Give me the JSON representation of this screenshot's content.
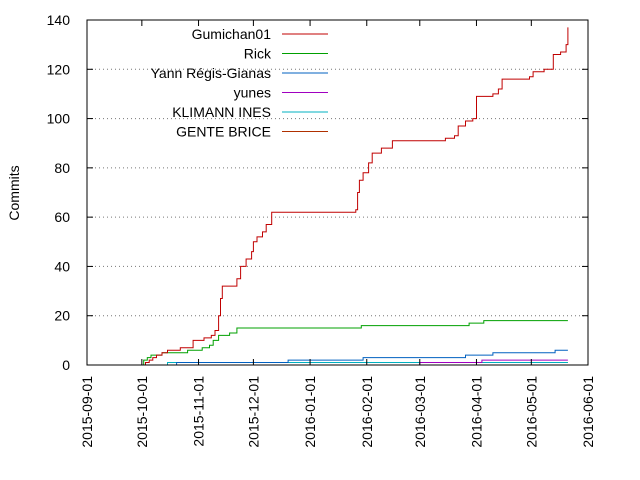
{
  "chart_data": {
    "type": "line",
    "title": "",
    "xlabel": "",
    "ylabel": "Commits",
    "ylim": [
      0,
      140
    ],
    "yticks": [
      0,
      20,
      40,
      60,
      80,
      100,
      120,
      140
    ],
    "xlim": [
      "2015-09-01",
      "2016-06-01"
    ],
    "xticks": [
      "2015-09-01",
      "2015-10-01",
      "2015-11-01",
      "2015-12-01",
      "2016-01-01",
      "2016-02-01",
      "2016-03-01",
      "2016-04-01",
      "2016-05-01",
      "2016-06-01"
    ],
    "grid": "horizontal dotted",
    "legend_position": "top-left",
    "series": [
      {
        "name": "Gumichan01",
        "color": "#c00000",
        "points": [
          [
            "2015-10-01",
            0
          ],
          [
            "2015-10-03",
            1
          ],
          [
            "2015-10-05",
            2
          ],
          [
            "2015-10-07",
            3
          ],
          [
            "2015-10-09",
            4
          ],
          [
            "2015-10-12",
            5
          ],
          [
            "2015-10-15",
            6
          ],
          [
            "2015-10-22",
            7
          ],
          [
            "2015-10-29",
            10
          ],
          [
            "2015-11-04",
            11
          ],
          [
            "2015-11-08",
            12
          ],
          [
            "2015-11-10",
            14
          ],
          [
            "2015-11-12",
            20
          ],
          [
            "2015-11-13",
            27
          ],
          [
            "2015-11-14",
            32
          ],
          [
            "2015-11-18",
            32
          ],
          [
            "2015-11-22",
            35
          ],
          [
            "2015-11-24",
            40
          ],
          [
            "2015-11-27",
            43
          ],
          [
            "2015-11-30",
            46
          ],
          [
            "2015-12-01",
            50
          ],
          [
            "2015-12-03",
            52
          ],
          [
            "2015-12-06",
            54
          ],
          [
            "2015-12-08",
            57
          ],
          [
            "2015-12-11",
            62
          ],
          [
            "2015-12-24",
            62
          ],
          [
            "2016-01-01",
            62
          ],
          [
            "2016-01-15",
            62
          ],
          [
            "2016-01-26",
            63
          ],
          [
            "2016-01-27",
            70
          ],
          [
            "2016-01-28",
            75
          ],
          [
            "2016-01-30",
            78
          ],
          [
            "2016-02-02",
            82
          ],
          [
            "2016-02-04",
            86
          ],
          [
            "2016-02-09",
            88
          ],
          [
            "2016-02-15",
            91
          ],
          [
            "2016-02-28",
            91
          ],
          [
            "2016-03-15",
            92
          ],
          [
            "2016-03-20",
            93
          ],
          [
            "2016-03-22",
            97
          ],
          [
            "2016-03-26",
            99
          ],
          [
            "2016-03-30",
            100
          ],
          [
            "2016-04-01",
            109
          ],
          [
            "2016-04-10",
            110
          ],
          [
            "2016-04-13",
            112
          ],
          [
            "2016-04-15",
            116
          ],
          [
            "2016-04-25",
            116
          ],
          [
            "2016-04-30",
            117
          ],
          [
            "2016-05-02",
            119
          ],
          [
            "2016-05-08",
            120
          ],
          [
            "2016-05-13",
            126
          ],
          [
            "2016-05-17",
            127
          ],
          [
            "2016-05-20",
            130
          ],
          [
            "2016-05-21",
            137
          ]
        ]
      },
      {
        "name": "Rick",
        "color": "#00a000",
        "points": [
          [
            "2015-10-01",
            0
          ],
          [
            "2015-10-02",
            2
          ],
          [
            "2015-10-04",
            3
          ],
          [
            "2015-10-06",
            4
          ],
          [
            "2015-10-12",
            5
          ],
          [
            "2015-10-20",
            5
          ],
          [
            "2015-10-26",
            6
          ],
          [
            "2015-11-03",
            7
          ],
          [
            "2015-11-07",
            8
          ],
          [
            "2015-11-09",
            10
          ],
          [
            "2015-11-12",
            12
          ],
          [
            "2015-11-18",
            13
          ],
          [
            "2015-11-22",
            15
          ],
          [
            "2015-12-15",
            15
          ],
          [
            "2016-01-29",
            16
          ],
          [
            "2016-03-01",
            16
          ],
          [
            "2016-03-24",
            16
          ],
          [
            "2016-03-28",
            17
          ],
          [
            "2016-04-05",
            18
          ],
          [
            "2016-05-21",
            18
          ]
        ]
      },
      {
        "name": "Yann Régis-Gianas",
        "color": "#0060c0",
        "points": [
          [
            "2015-10-10",
            0
          ],
          [
            "2015-10-20",
            1
          ],
          [
            "2015-12-20",
            2
          ],
          [
            "2016-01-30",
            3
          ],
          [
            "2016-03-26",
            4
          ],
          [
            "2016-04-10",
            5
          ],
          [
            "2016-05-14",
            6
          ],
          [
            "2016-05-21",
            6
          ]
        ]
      },
      {
        "name": "yunes",
        "color": "#a000c0",
        "points": [
          [
            "2015-10-10",
            0
          ],
          [
            "2016-03-01",
            1
          ],
          [
            "2016-04-04",
            2
          ],
          [
            "2016-05-21",
            2
          ]
        ]
      },
      {
        "name": "KLIMANN INES",
        "color": "#00b0c0",
        "points": [
          [
            "2015-10-05",
            0
          ],
          [
            "2015-10-15",
            1
          ],
          [
            "2016-05-21",
            1
          ]
        ]
      },
      {
        "name": "GENTE BRICE",
        "color": "#b03000",
        "points": [
          [
            "2015-10-05",
            0
          ],
          [
            "2015-10-15",
            1
          ],
          [
            "2016-05-21",
            1
          ]
        ]
      }
    ]
  }
}
